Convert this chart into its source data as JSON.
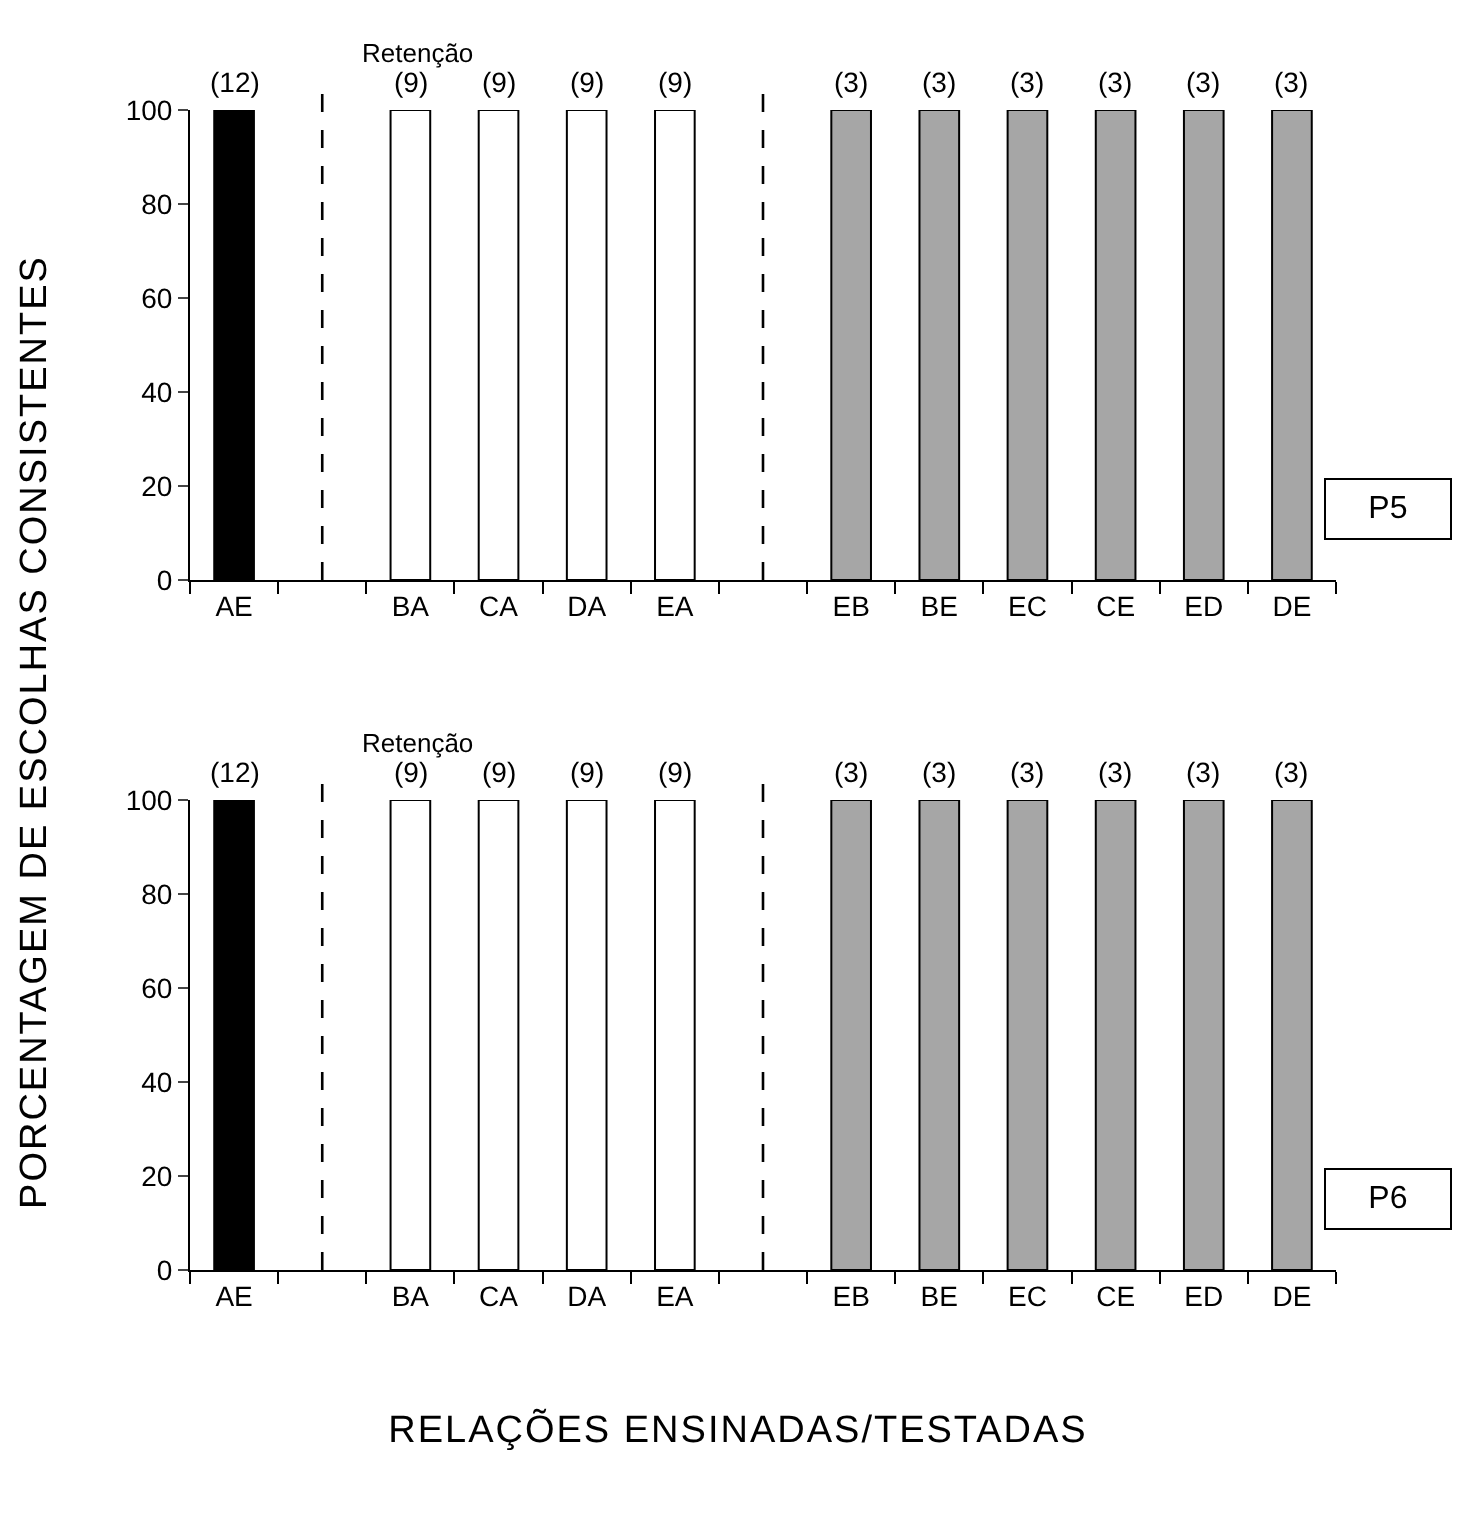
{
  "chart_data": [
    {
      "type": "bar",
      "ylabel": "PORCENTAGEM DE ESCOLHAS CONSISTENTES",
      "categories": [
        "AE",
        null,
        "BA",
        "CA",
        "DA",
        "EA",
        null,
        "EB",
        "BE",
        "EC",
        "CE",
        "ED",
        "DE"
      ],
      "values": [
        100,
        null,
        100,
        100,
        100,
        100,
        null,
        100,
        100,
        100,
        100,
        100,
        100
      ],
      "colors": [
        "#000000",
        null,
        "#ffffff",
        "#ffffff",
        "#ffffff",
        "#ffffff",
        null,
        "#a6a6a6",
        "#a6a6a6",
        "#a6a6a6",
        "#a6a6a6",
        "#a6a6a6",
        "#a6a6a6"
      ],
      "ylim": [
        0,
        100
      ],
      "yticks": [
        0,
        20,
        40,
        60,
        80,
        100
      ],
      "annotations": [
        "Retenção",
        "P5",
        {
          "text": "(12)",
          "x": "AE",
          "y": 100
        },
        {
          "text": "(9)",
          "x": "BA",
          "y": 100
        },
        {
          "text": "(9)",
          "x": "CA",
          "y": 100
        },
        {
          "text": "(9)",
          "x": "DA",
          "y": 100
        },
        {
          "text": "(9)",
          "x": "EA",
          "y": 100
        },
        {
          "text": "(3)",
          "x": "EB",
          "y": 100
        },
        {
          "text": "(3)",
          "x": "BE",
          "y": 100
        },
        {
          "text": "(3)",
          "x": "EC",
          "y": 100
        },
        {
          "text": "(3)",
          "x": "CE",
          "y": 100
        },
        {
          "text": "(3)",
          "x": "ED",
          "y": 100
        },
        {
          "text": "(3)",
          "x": "DE",
          "y": 100
        }
      ]
    },
    {
      "type": "bar",
      "xlabel": "RELAÇÕES ENSINADAS/TESTADAS",
      "categories": [
        "AE",
        null,
        "BA",
        "CA",
        "DA",
        "EA",
        null,
        "EB",
        "BE",
        "EC",
        "CE",
        "ED",
        "DE"
      ],
      "values": [
        100,
        null,
        100,
        100,
        100,
        100,
        null,
        100,
        100,
        100,
        100,
        100,
        100
      ],
      "colors": [
        "#000000",
        null,
        "#ffffff",
        "#ffffff",
        "#ffffff",
        "#ffffff",
        null,
        "#a6a6a6",
        "#a6a6a6",
        "#a6a6a6",
        "#a6a6a6",
        "#a6a6a6",
        "#a6a6a6"
      ],
      "ylim": [
        0,
        100
      ],
      "yticks": [
        0,
        20,
        40,
        60,
        80,
        100
      ],
      "annotations": [
        "Retenção",
        "P6",
        {
          "text": "(12)",
          "x": "AE",
          "y": 100
        },
        {
          "text": "(9)",
          "x": "BA",
          "y": 100
        },
        {
          "text": "(9)",
          "x": "CA",
          "y": 100
        },
        {
          "text": "(9)",
          "x": "DA",
          "y": 100
        },
        {
          "text": "(9)",
          "x": "EA",
          "y": 100
        },
        {
          "text": "(3)",
          "x": "EB",
          "y": 100
        },
        {
          "text": "(3)",
          "x": "BE",
          "y": 100
        },
        {
          "text": "(3)",
          "x": "EC",
          "y": 100
        },
        {
          "text": "(3)",
          "x": "CE",
          "y": 100
        },
        {
          "text": "(3)",
          "x": "ED",
          "y": 100
        },
        {
          "text": "(3)",
          "x": "DE",
          "y": 100
        }
      ]
    }
  ]
}
